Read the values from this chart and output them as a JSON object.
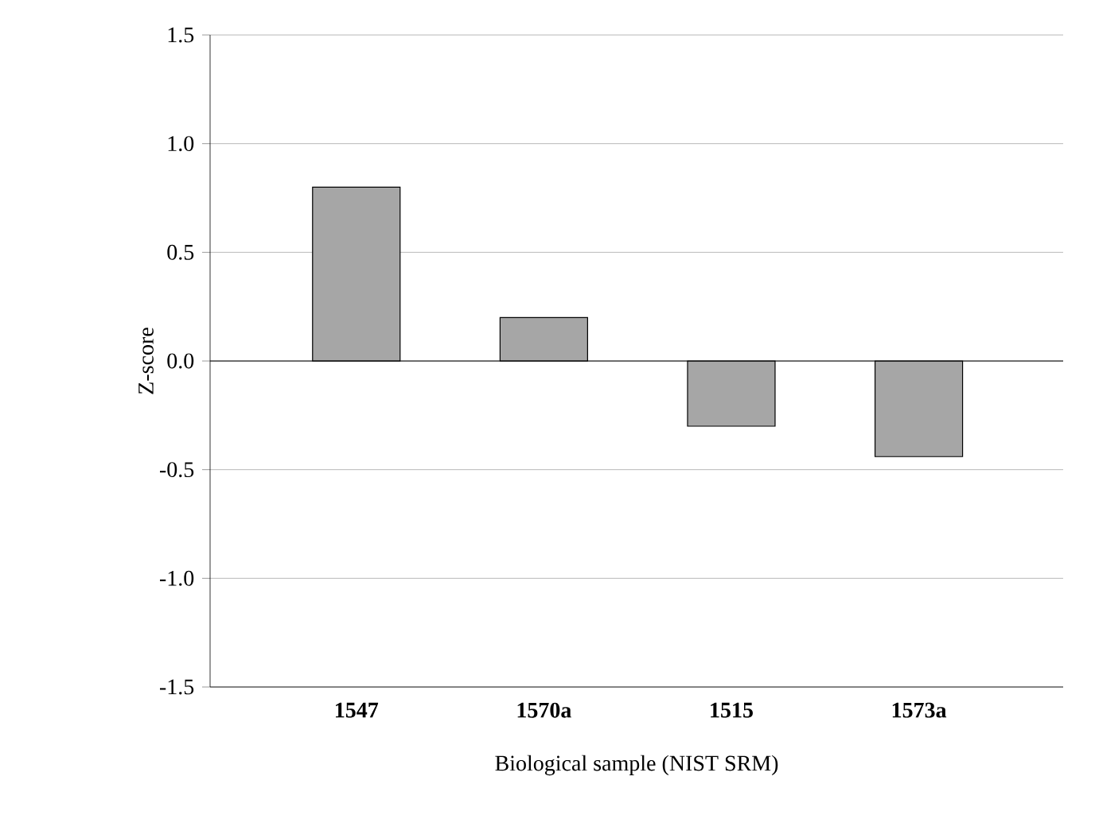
{
  "chart_data": {
    "type": "bar",
    "xlabel": "Biological sample (NIST SRM)",
    "ylabel": "Z-score",
    "categories": [
      "1547",
      "1570a",
      "1515",
      "1573a"
    ],
    "values": [
      0.8,
      0.2,
      -0.3,
      -0.44
    ],
    "color": "#a6a6a6",
    "ylim": [
      -1.5,
      1.5
    ],
    "yticks": [
      {
        "value": -1.5,
        "label": "-1.5"
      },
      {
        "value": -1.0,
        "label": "-1.0"
      },
      {
        "value": -0.5,
        "label": "-0.5"
      },
      {
        "value": 0.0,
        "label": "0.0"
      },
      {
        "value": 0.5,
        "label": "0.5"
      },
      {
        "value": 1.0,
        "label": "1.0"
      },
      {
        "value": 1.5,
        "label": "1.5"
      }
    ],
    "grid": "y"
  }
}
